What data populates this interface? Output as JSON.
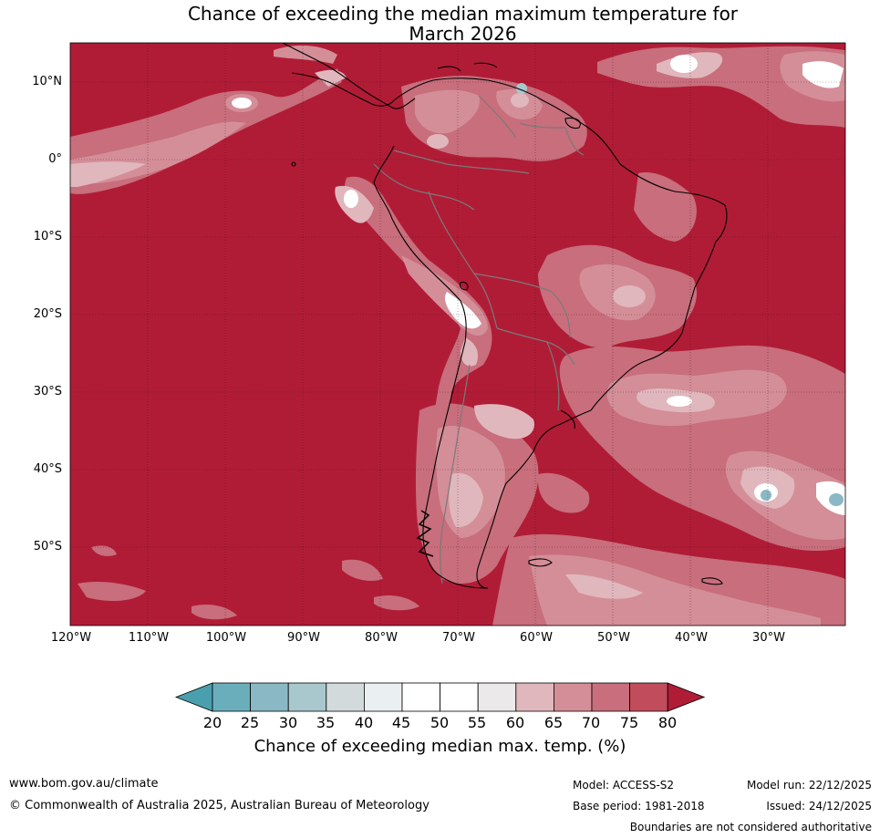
{
  "title_line1": "Chance of exceeding the median maximum temperature for",
  "title_line2": "March 2026",
  "lat_labels": [
    "10°N",
    "0°",
    "10°S",
    "20°S",
    "30°S",
    "40°S",
    "50°S"
  ],
  "lon_labels": [
    "120°W",
    "110°W",
    "100°W",
    "90°W",
    "80°W",
    "70°W",
    "60°W",
    "50°W",
    "40°W",
    "30°W"
  ],
  "colorbar": {
    "ticks": [
      "20",
      "25",
      "30",
      "35",
      "40",
      "45",
      "50",
      "55",
      "60",
      "65",
      "70",
      "75",
      "80"
    ],
    "colors": [
      "#4a9fae",
      "#6aaebb",
      "#8ab8c4",
      "#a9c8cd",
      "#d2dadb",
      "#eaf0f2",
      "#ffffff",
      "#ffffff",
      "#ebe9ea",
      "#e0b7bd",
      "#d48e98",
      "#c86e7c",
      "#c04c5c",
      "#b01c36"
    ],
    "label": "Chance of exceeding median max. temp. (%)"
  },
  "map_colors": {
    "sea_background": "#b01c36",
    "contour_70": "#c04c5c",
    "contour_65": "#c86e7c",
    "contour_60": "#d48e98",
    "contour_55": "#e0b7bd",
    "contour_50": "#ebe9ea",
    "contour_45": "#ffffff",
    "contour_35": "#a9c8cd",
    "contour_30": "#8ab8c4",
    "border_color": "#7a7a7a",
    "coast_color": "#000000"
  },
  "footer": {
    "website": "www.bom.gov.au/climate",
    "copyright": "© Commonwealth of Australia 2025, Australian Bureau of Meteorology",
    "model": "Model: ACCESS-S2",
    "base_period": "Base period: 1981-2018",
    "model_run": "Model run: 22/12/2025",
    "issued": "Issued: 24/12/2025",
    "disclaimer": "Boundaries are not considered authoritative"
  }
}
